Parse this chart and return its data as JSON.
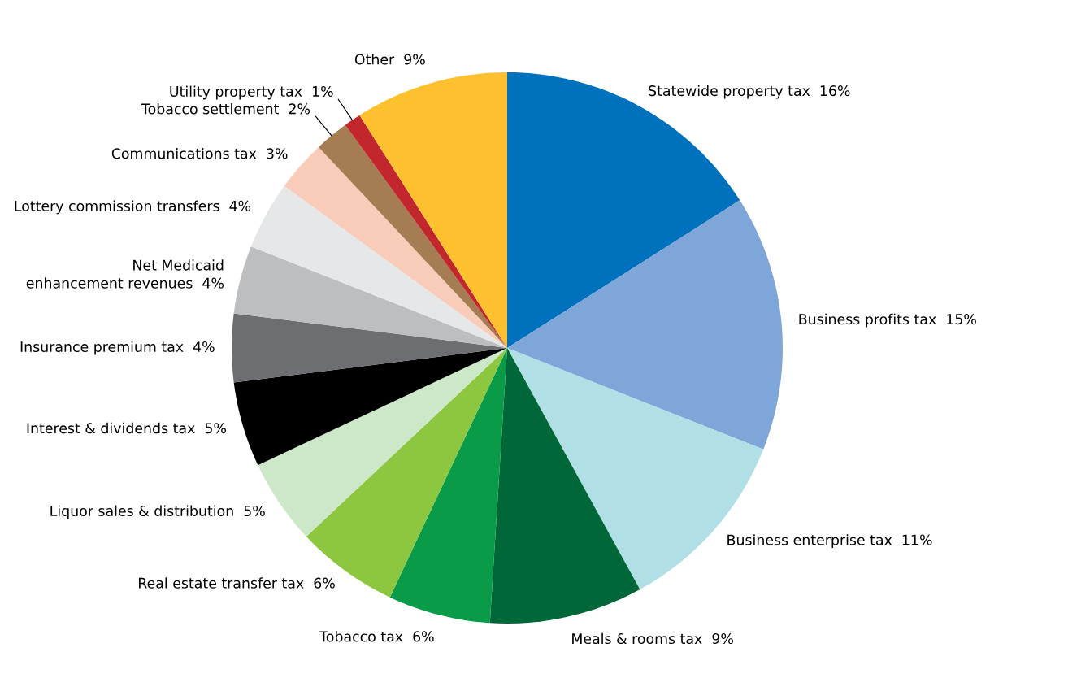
{
  "chart_data": {
    "type": "pie",
    "categories": [
      "Statewide property tax",
      "Business profits tax",
      "Business enterprise tax",
      "Meals & rooms tax",
      "Tobacco tax",
      "Real estate transfer tax",
      "Liquor sales & distribution",
      "Interest & dividends tax",
      "Insurance premium tax",
      "Net Medicaid\nenhancement revenues",
      "Lottery commission transfers",
      "Communications tax",
      "Tobacco settlement",
      "Utility property tax",
      "Other"
    ],
    "values": [
      16,
      15,
      11,
      9,
      6,
      6,
      5,
      5,
      4,
      4,
      4,
      3,
      2,
      1,
      9
    ],
    "value_labels": [
      "16%",
      "15%",
      "11%",
      "9%",
      "6%",
      "6%",
      "5%",
      "5%",
      "4%",
      "4%",
      "4%",
      "3%",
      "2%",
      "1%",
      "9%"
    ],
    "colors": [
      "#0071bc",
      "#7ea6d8",
      "#b0dfe5",
      "#006838",
      "#0a9b48",
      "#8dc63f",
      "#cde7c9",
      "#000000",
      "#6d6e71",
      "#bcbec0",
      "#e6e7e8",
      "#f9cbb9",
      "#a67c52",
      "#c1272d",
      "#fdc02f"
    ],
    "legend": false
  }
}
